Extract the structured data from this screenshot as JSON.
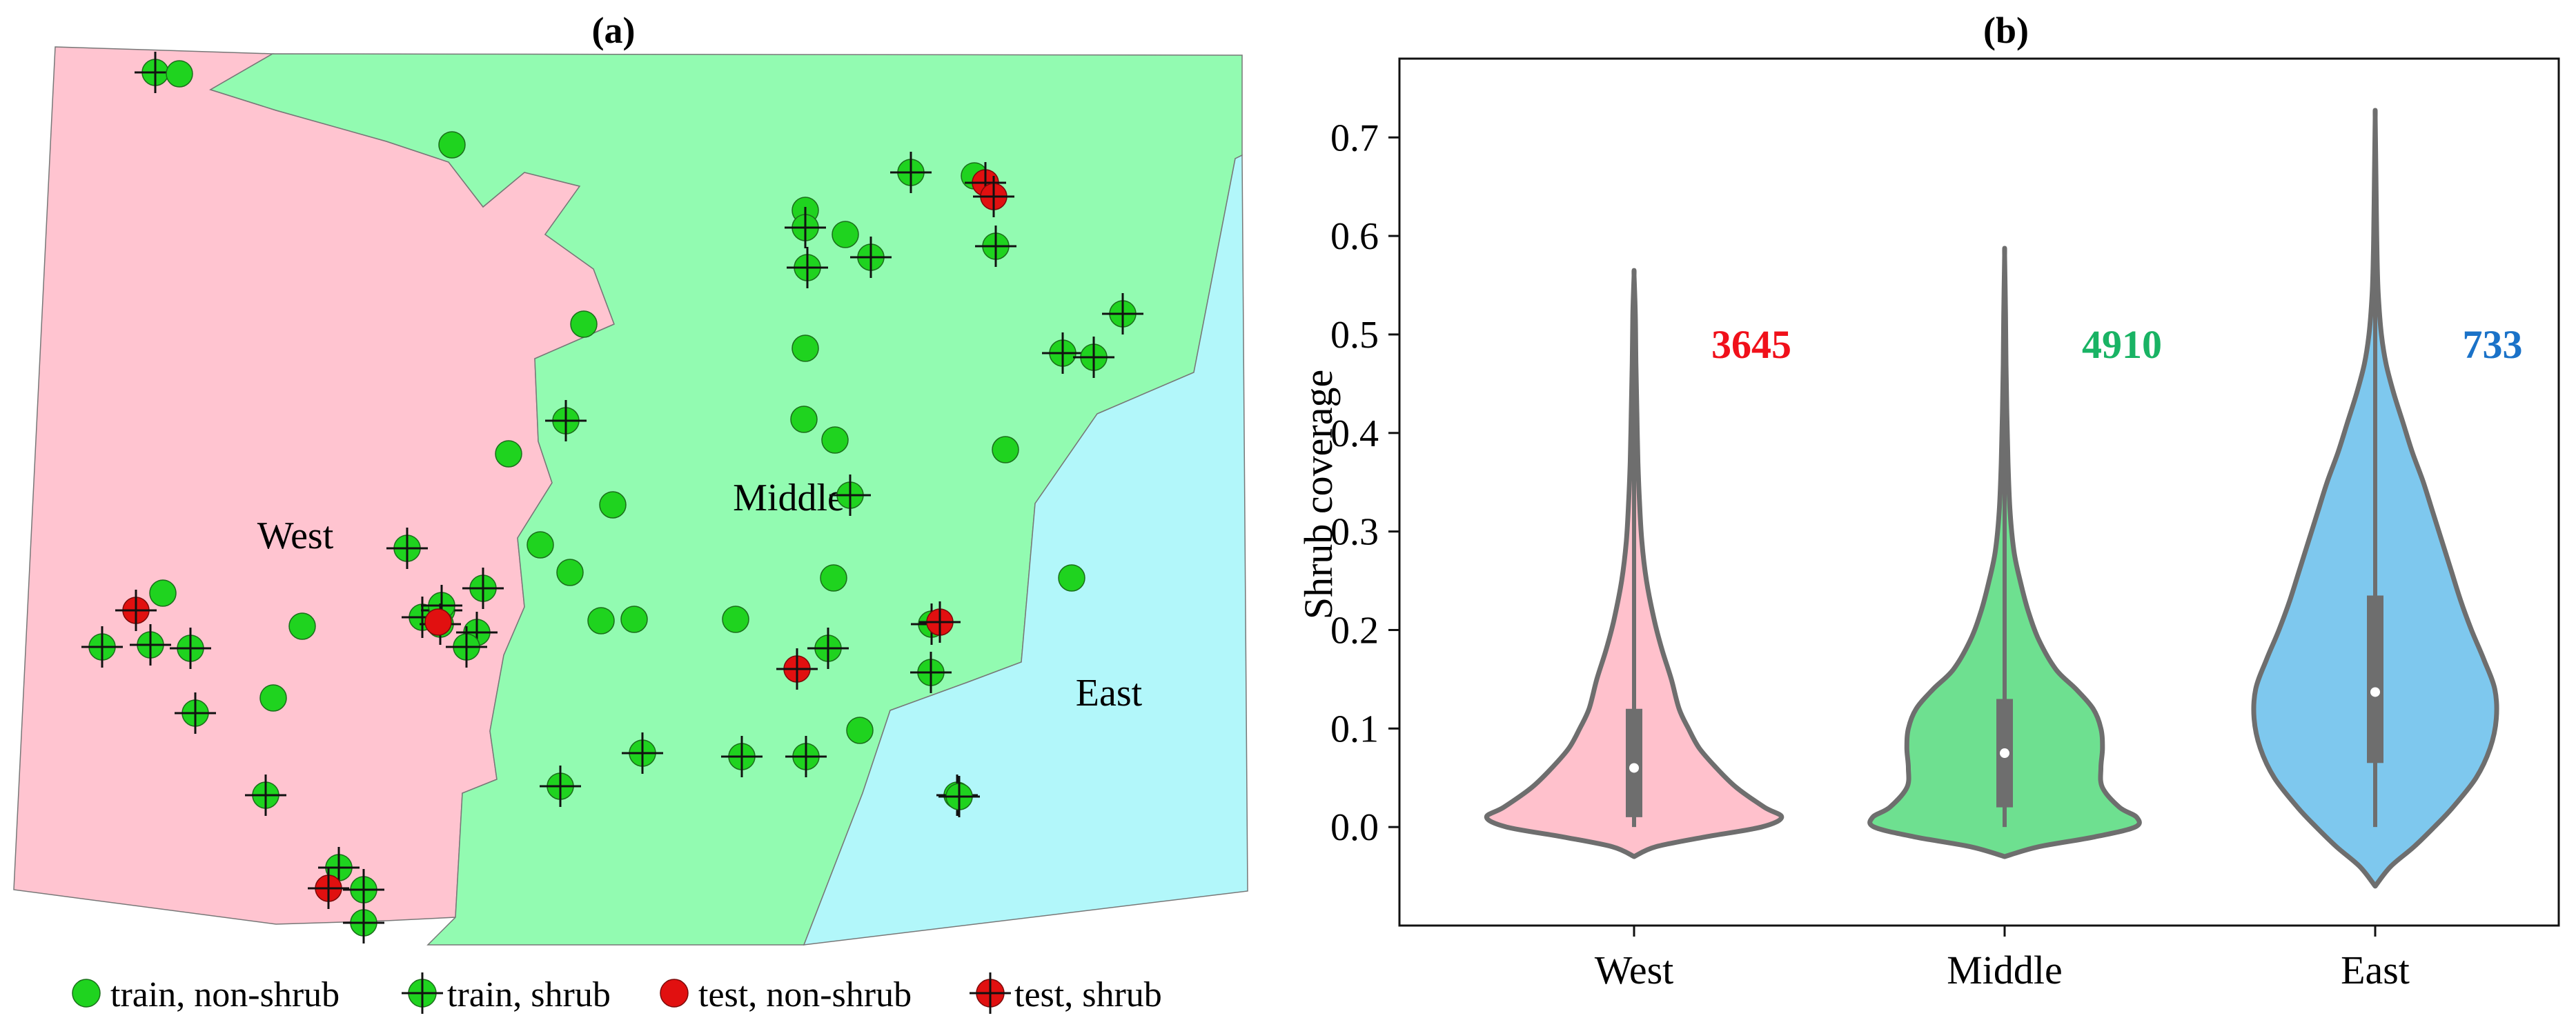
{
  "colors": {
    "west": "#ffc4d0",
    "middle": "#92fbb1",
    "east": "#b2f7fa",
    "point_green": "#1fd31f",
    "point_red": "#e11010",
    "violin_west": "#ffc1cc",
    "violin_middle": "#6ee090",
    "violin_east": "#7ec8ee",
    "violin_stroke": "#6e6e6e",
    "count_west": "#f0101a",
    "count_middle": "#19b364",
    "count_east": "#1a72c8"
  },
  "chart_data": [
    {
      "type": "map",
      "title": "(a)",
      "regions": [
        {
          "name": "West"
        },
        {
          "name": "Middle"
        },
        {
          "name": "East"
        }
      ],
      "legend": {
        "placement": "bottom",
        "entries": [
          {
            "label": "train, non-shrub",
            "marker": "circle",
            "color": "green"
          },
          {
            "label": "train, shrub",
            "marker": "circle-cross",
            "color": "green"
          },
          {
            "label": "test, non-shrub",
            "marker": "circle",
            "color": "red"
          },
          {
            "label": "test, shrub",
            "marker": "circle-cross",
            "color": "red"
          }
        ]
      }
    },
    {
      "type": "violin",
      "title": "(b)",
      "ylabel": "Shrub coverage",
      "xlabel": "",
      "ylim": [
        -0.1,
        0.78
      ],
      "yticks": [
        "0.0",
        "0.1",
        "0.2",
        "0.3",
        "0.4",
        "0.5",
        "0.6",
        "0.7"
      ],
      "categories": [
        "West",
        "Middle",
        "East"
      ],
      "counts": [
        "3645",
        "4910",
        "733"
      ],
      "series": [
        {
          "name": "West",
          "count": 3645,
          "min": 0.0,
          "max": 0.56,
          "q1": 0.01,
          "median": 0.06,
          "q3": 0.12,
          "whisker_low": 0.0,
          "whisker_high": 0.29,
          "density_y": [
            -0.03,
            -0.02,
            -0.01,
            0.0,
            0.01,
            0.02,
            0.04,
            0.06,
            0.08,
            0.1,
            0.12,
            0.15,
            0.18,
            0.21,
            0.25,
            0.29,
            0.33,
            0.37,
            0.42,
            0.47,
            0.52,
            0.56
          ],
          "density_w": [
            0.0,
            0.14,
            0.46,
            0.82,
            0.95,
            0.84,
            0.66,
            0.53,
            0.42,
            0.35,
            0.29,
            0.24,
            0.18,
            0.13,
            0.08,
            0.05,
            0.035,
            0.025,
            0.018,
            0.012,
            0.008,
            0.0
          ]
        },
        {
          "name": "Middle",
          "count": 4910,
          "min": 0.0,
          "max": 0.58,
          "q1": 0.02,
          "median": 0.075,
          "q3": 0.13,
          "whisker_low": 0.0,
          "whisker_high": 0.27,
          "density_y": [
            -0.03,
            -0.02,
            -0.01,
            0.0,
            0.01,
            0.02,
            0.04,
            0.06,
            0.08,
            0.1,
            0.12,
            0.14,
            0.16,
            0.19,
            0.22,
            0.25,
            0.28,
            0.32,
            0.37,
            0.42,
            0.47,
            0.52,
            0.58
          ],
          "density_w": [
            0.0,
            0.22,
            0.58,
            0.84,
            0.85,
            0.74,
            0.63,
            0.62,
            0.63,
            0.62,
            0.57,
            0.46,
            0.33,
            0.22,
            0.15,
            0.1,
            0.06,
            0.035,
            0.022,
            0.014,
            0.009,
            0.006,
            0.0
          ]
        },
        {
          "name": "East",
          "count": 733,
          "min": 0.0,
          "max": 0.72,
          "q1": 0.065,
          "median": 0.137,
          "q3": 0.235,
          "whisker_low": 0.0,
          "whisker_high": 0.46,
          "density_y": [
            -0.06,
            -0.04,
            -0.02,
            0.0,
            0.02,
            0.05,
            0.08,
            0.11,
            0.14,
            0.17,
            0.2,
            0.23,
            0.26,
            0.29,
            0.32,
            0.35,
            0.38,
            0.41,
            0.44,
            0.47,
            0.5,
            0.54,
            0.58,
            0.62,
            0.66,
            0.72
          ],
          "density_w": [
            0.0,
            0.1,
            0.25,
            0.38,
            0.5,
            0.65,
            0.74,
            0.78,
            0.77,
            0.7,
            0.62,
            0.55,
            0.49,
            0.43,
            0.37,
            0.31,
            0.24,
            0.18,
            0.12,
            0.07,
            0.04,
            0.02,
            0.012,
            0.008,
            0.005,
            0.0
          ]
        }
      ]
    }
  ]
}
